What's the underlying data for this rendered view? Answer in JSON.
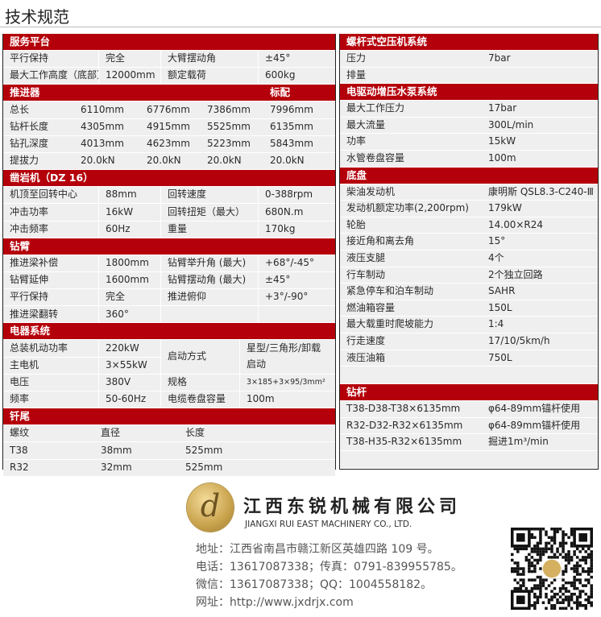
{
  "page_title": "技术规范",
  "colors": {
    "header_red": "#b4000a",
    "row_bg": "#efefef"
  },
  "left": [
    {
      "title": "服务平台",
      "type": "A",
      "rows": [
        [
          "平行保持",
          "完全",
          "大臂摆动角",
          "±45°"
        ],
        [
          "最大工作高度（底部）",
          "12000mm",
          "额定载荷",
          "600kg"
        ]
      ]
    },
    {
      "title": "推进器",
      "title_right": "标配",
      "type": "B",
      "rows": [
        [
          "总长",
          "6110mm",
          "6776mm",
          "7386mm",
          "7996mm"
        ],
        [
          "钻杆长度",
          "4305mm",
          "4915mm",
          "5525mm",
          "6135mm"
        ],
        [
          "钻孔深度",
          "4013mm",
          "4623mm",
          "5223mm",
          "5843mm"
        ],
        [
          "提拔力",
          "20.0kN",
          "20.0kN",
          "20.0kN",
          "20.0kN"
        ]
      ]
    },
    {
      "title": "凿岩机（DZ 16）",
      "type": "C",
      "rows": [
        [
          "机顶至回转中心",
          "88mm",
          "回转速度",
          "0-388rpm"
        ],
        [
          "冲击功率",
          "16kW",
          "回转扭矩（最大）",
          "680N.m"
        ],
        [
          "冲击频率",
          "60Hz",
          "重量",
          "170kg"
        ]
      ]
    },
    {
      "title": "钻臂",
      "type": "A",
      "rows": [
        [
          "推进梁补偿",
          "1800mm",
          "钻臂举升角 (最大)",
          "+68°/-45°"
        ],
        [
          "钻臂延伸",
          "1600mm",
          "钻臂摆动角 (最大)",
          "±45°"
        ],
        [
          "平行保持",
          "完全",
          "推进俯仰",
          "+3°/-90°"
        ],
        [
          "推进梁翻转",
          "360°",
          "",
          ""
        ]
      ]
    },
    {
      "title": "电器系统",
      "type": "E",
      "rows": [
        [
          "总装机动功率",
          "220kW",
          "启动方式",
          "星型/三角形/卸载启动"
        ],
        [
          "主电机",
          "3×55kW"
        ],
        [
          "电压",
          "380V",
          "规格",
          "3×185+3×95/3mm²"
        ],
        [
          "频率",
          "50-60Hz",
          "电缆卷盘容量",
          "100m"
        ]
      ]
    },
    {
      "title": "钎尾",
      "type": "F",
      "rows": [
        [
          "螺纹",
          "直径",
          "长度"
        ],
        [
          "T38",
          "38mm",
          "525mm"
        ],
        [
          "R32",
          "32mm",
          "525mm"
        ]
      ]
    }
  ],
  "right": [
    {
      "title": "螺杆式空压机系统",
      "rows": [
        [
          "压力",
          "7bar"
        ],
        [
          "排量",
          ""
        ]
      ]
    },
    {
      "title": "电驱动增压水泵系统",
      "rows": [
        [
          "最大工作压力",
          "17bar"
        ],
        [
          "最大流量",
          "300L/min"
        ],
        [
          "功率",
          "15kW"
        ],
        [
          "水管卷盘容量",
          "100m"
        ]
      ]
    },
    {
      "title": "底盘",
      "rows": [
        [
          "柴油发动机",
          "康明斯 QSL8.3-C240-Ⅲ"
        ],
        [
          "发动机额定功率(2,200rpm)",
          "179kW"
        ],
        [
          "轮胎",
          "14.00×R24"
        ],
        [
          "接近角和离去角",
          "15°"
        ],
        [
          "液压支腿",
          "4个"
        ],
        [
          "行车制动",
          "2个独立回路"
        ],
        [
          "紧急停车和泊车制动",
          "SAHR"
        ],
        [
          "燃油箱容量",
          "150L"
        ],
        [
          "最大载重时爬坡能力",
          "1:4"
        ],
        [
          "行走速度",
          "17/10/5km/h"
        ],
        [
          "液压油箱",
          "750L"
        ]
      ],
      "blank_after": true
    },
    {
      "title": "钻杆",
      "rows": [
        [
          "T38-D38-T38×6135mm",
          "φ64-89mm锚杆使用"
        ],
        [
          "R32-D32-R32×6135mm",
          "φ64-89mm锚杆使用"
        ],
        [
          "T38-H35-R32×6135mm",
          "掘进1m³/min"
        ]
      ],
      "blank_after": true
    }
  ],
  "footer": {
    "logo_letter": "d",
    "company_cn": "江西东锐机械有限公司",
    "company_en": "JIANGXI RUI EAST MACHINERY CO., LTD.",
    "address": "地址：江西省南昌市赣江新区英雄四路 109 号。",
    "phone": "电话：13617087338；传真：0791-839955785。",
    "wechat": "微信：13617087338；QQ：1004558182。",
    "website": "网址：http://www.jxdrjx.com"
  }
}
